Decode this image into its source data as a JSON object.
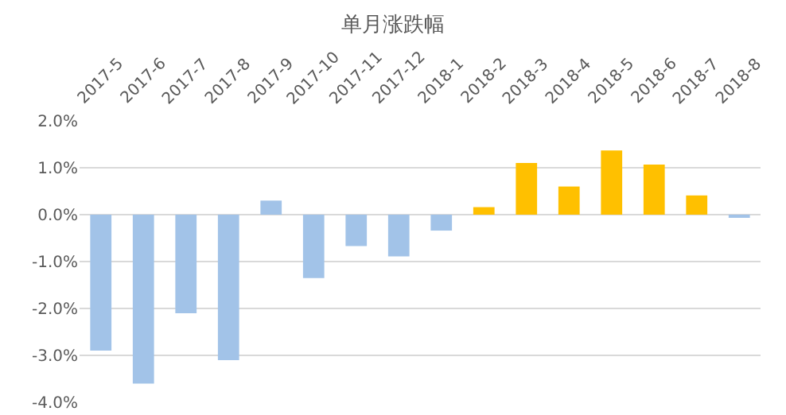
{
  "chart_data": {
    "type": "bar",
    "title": "单月涨跌幅",
    "categories": [
      "2017-5",
      "2017-6",
      "2017-7",
      "2017-8",
      "2017-9",
      "2017-10",
      "2017-11",
      "2017-12",
      "2018-1",
      "2018-2",
      "2018-3",
      "2018-4",
      "2018-5",
      "2018-6",
      "2018-7",
      "2018-8"
    ],
    "values": [
      -2.9,
      -3.6,
      -2.1,
      -3.1,
      0.3,
      -1.35,
      -0.67,
      -0.89,
      -0.34,
      0.16,
      1.1,
      0.6,
      1.37,
      1.07,
      0.41,
      -0.05
    ],
    "colors": [
      "#a2c3e8",
      "#a2c3e8",
      "#a2c3e8",
      "#a2c3e8",
      "#a2c3e8",
      "#a2c3e8",
      "#a2c3e8",
      "#a2c3e8",
      "#a2c3e8",
      "#ffc000",
      "#ffc000",
      "#ffc000",
      "#ffc000",
      "#ffc000",
      "#ffc000",
      "#a2c3e8"
    ],
    "ylim": [
      -4,
      2
    ],
    "yticks": [
      {
        "value": -4,
        "label": "-4.0%"
      },
      {
        "value": -3,
        "label": "-3.0%"
      },
      {
        "value": -2,
        "label": "-2.0%"
      },
      {
        "value": -1,
        "label": "-1.0%"
      },
      {
        "value": 0,
        "label": "0.0%"
      },
      {
        "value": 1,
        "label": "1.0%"
      },
      {
        "value": 2,
        "label": "2.0%"
      }
    ],
    "grid": "y",
    "legend": false
  }
}
